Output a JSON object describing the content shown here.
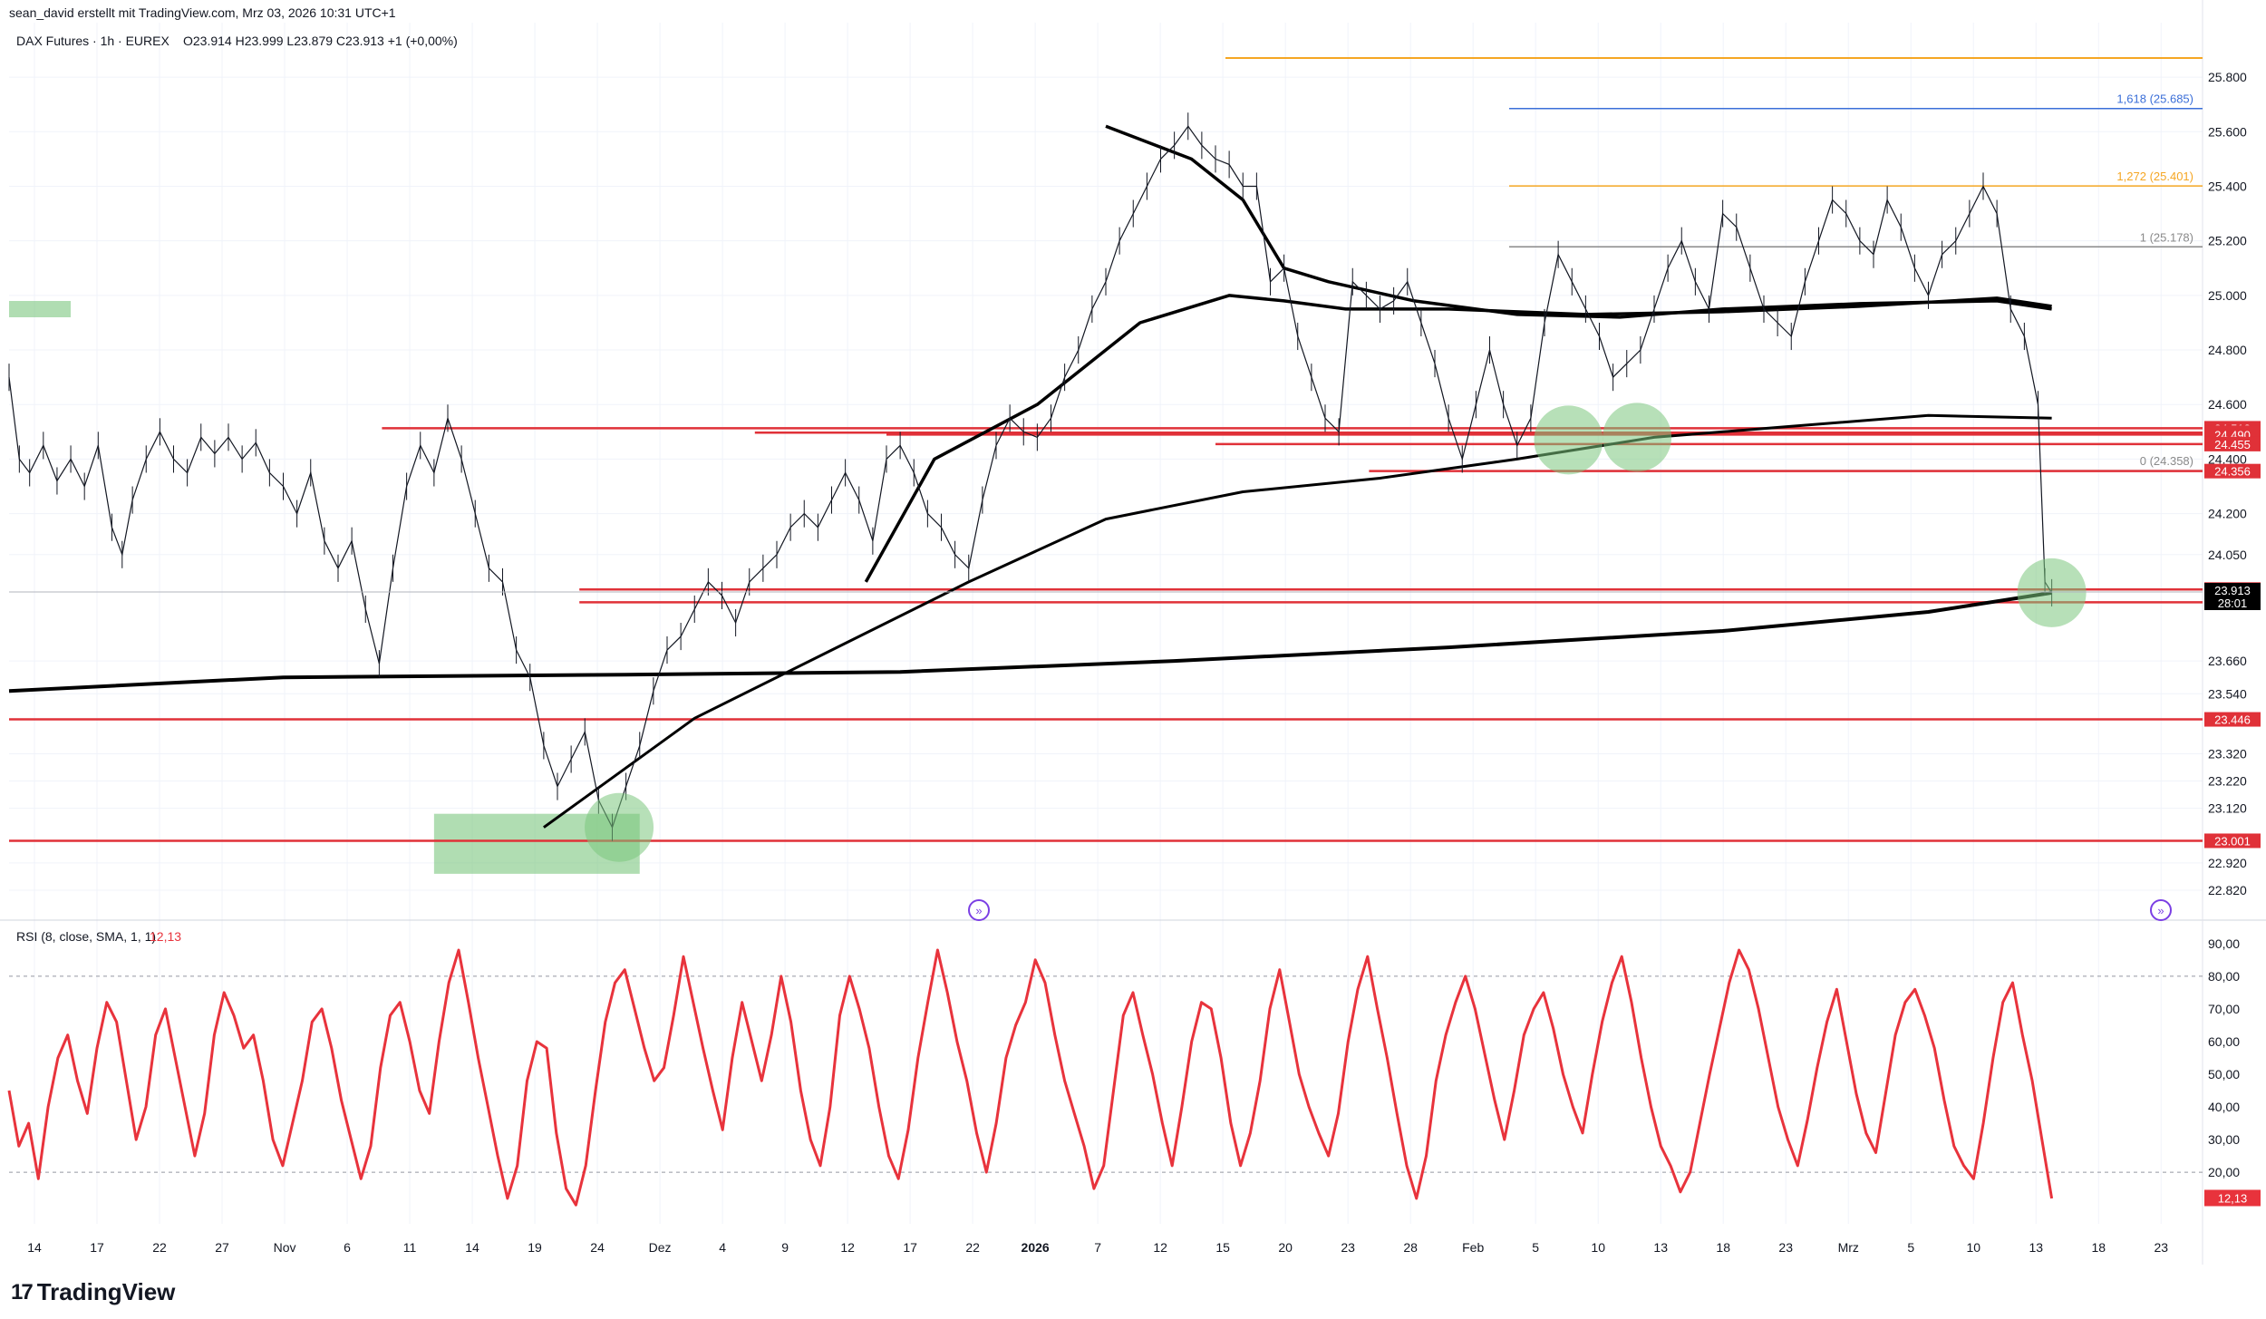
{
  "header": {
    "credit": "sean_david erstellt mit TradingView.com, Mrz 03, 2026 10:31 UTC+1",
    "symbol": "DAX Futures · 1h · EUREX",
    "ohlc": "O23.914  H23.999  L23.879  C23.913  +1 (+0,00%)"
  },
  "footer": {
    "logo_text": "TradingView"
  },
  "colors": {
    "price": "#131722",
    "support": "#e03138",
    "rsi": "#e8333c",
    "zone": "#7bc67e",
    "fib_orange": "#f5a623",
    "fib_blue": "#3b6fd8",
    "fib_gray": "#8a8a8a",
    "ma": "#000000"
  },
  "chart_data": [
    {
      "type": "line",
      "title": "DAX Futures · 1h · EUREX",
      "x_labels": [
        "14",
        "17",
        "22",
        "27",
        "Nov",
        "6",
        "11",
        "14",
        "19",
        "24",
        "Dez",
        "4",
        "9",
        "12",
        "17",
        "22",
        "2026",
        "7",
        "12",
        "15",
        "20",
        "23",
        "28",
        "Feb",
        "5",
        "10",
        "13",
        "18",
        "23",
        "Mrz",
        "5",
        "10",
        "13",
        "18",
        "23"
      ],
      "y_ticks": [
        "25.800",
        "25.600",
        "25.400",
        "25.200",
        "25.000",
        "24.800",
        "24.600",
        "24.400",
        "24.200",
        "24.050",
        "23.913",
        "23.660",
        "23.540",
        "23.320",
        "23.220",
        "23.120",
        "22.920",
        "22.820"
      ],
      "ylim": [
        22.76,
        25.9
      ],
      "price_path": [
        [
          0,
          24.7
        ],
        [
          3,
          24.4
        ],
        [
          6,
          24.35
        ],
        [
          10,
          24.45
        ],
        [
          14,
          24.32
        ],
        [
          18,
          24.4
        ],
        [
          22,
          24.3
        ],
        [
          26,
          24.45
        ],
        [
          30,
          24.15
        ],
        [
          33,
          24.05
        ],
        [
          36,
          24.25
        ],
        [
          40,
          24.4
        ],
        [
          44,
          24.5
        ],
        [
          48,
          24.4
        ],
        [
          52,
          24.35
        ],
        [
          56,
          24.48
        ],
        [
          60,
          24.42
        ],
        [
          64,
          24.48
        ],
        [
          68,
          24.4
        ],
        [
          72,
          24.46
        ],
        [
          76,
          24.35
        ],
        [
          80,
          24.3
        ],
        [
          84,
          24.2
        ],
        [
          88,
          24.35
        ],
        [
          92,
          24.1
        ],
        [
          96,
          24.0
        ],
        [
          100,
          24.1
        ],
        [
          104,
          23.85
        ],
        [
          108,
          23.65
        ],
        [
          112,
          24.0
        ],
        [
          116,
          24.3
        ],
        [
          120,
          24.45
        ],
        [
          124,
          24.35
        ],
        [
          128,
          24.55
        ],
        [
          132,
          24.4
        ],
        [
          136,
          24.2
        ],
        [
          140,
          24.0
        ],
        [
          144,
          23.95
        ],
        [
          148,
          23.7
        ],
        [
          152,
          23.6
        ],
        [
          156,
          23.35
        ],
        [
          160,
          23.2
        ],
        [
          164,
          23.3
        ],
        [
          168,
          23.4
        ],
        [
          172,
          23.15
        ],
        [
          176,
          23.05
        ],
        [
          180,
          23.2
        ],
        [
          184,
          23.35
        ],
        [
          188,
          23.55
        ],
        [
          192,
          23.7
        ],
        [
          196,
          23.75
        ],
        [
          200,
          23.85
        ],
        [
          204,
          23.95
        ],
        [
          208,
          23.9
        ],
        [
          212,
          23.8
        ],
        [
          216,
          23.95
        ],
        [
          220,
          24.0
        ],
        [
          224,
          24.05
        ],
        [
          228,
          24.15
        ],
        [
          232,
          24.2
        ],
        [
          236,
          24.15
        ],
        [
          240,
          24.25
        ],
        [
          244,
          24.35
        ],
        [
          248,
          24.25
        ],
        [
          252,
          24.1
        ],
        [
          256,
          24.4
        ],
        [
          260,
          24.45
        ],
        [
          264,
          24.35
        ],
        [
          268,
          24.2
        ],
        [
          272,
          24.15
        ],
        [
          276,
          24.05
        ],
        [
          280,
          24.0
        ],
        [
          284,
          24.25
        ],
        [
          288,
          24.45
        ],
        [
          292,
          24.55
        ],
        [
          296,
          24.5
        ],
        [
          300,
          24.48
        ],
        [
          304,
          24.55
        ],
        [
          308,
          24.7
        ],
        [
          312,
          24.8
        ],
        [
          316,
          24.95
        ],
        [
          320,
          25.05
        ],
        [
          324,
          25.2
        ],
        [
          328,
          25.3
        ],
        [
          332,
          25.4
        ],
        [
          336,
          25.5
        ],
        [
          340,
          25.55
        ],
        [
          344,
          25.62
        ],
        [
          348,
          25.55
        ],
        [
          352,
          25.5
        ],
        [
          356,
          25.48
        ],
        [
          360,
          25.4
        ],
        [
          364,
          25.4
        ],
        [
          368,
          25.05
        ],
        [
          372,
          25.1
        ],
        [
          376,
          24.85
        ],
        [
          380,
          24.7
        ],
        [
          384,
          24.55
        ],
        [
          388,
          24.5
        ],
        [
          392,
          25.05
        ],
        [
          396,
          25.0
        ],
        [
          400,
          24.95
        ],
        [
          404,
          24.98
        ],
        [
          408,
          25.05
        ],
        [
          412,
          24.9
        ],
        [
          416,
          24.75
        ],
        [
          420,
          24.55
        ],
        [
          424,
          24.4
        ],
        [
          428,
          24.6
        ],
        [
          432,
          24.8
        ],
        [
          436,
          24.6
        ],
        [
          440,
          24.45
        ],
        [
          444,
          24.55
        ],
        [
          448,
          24.9
        ],
        [
          452,
          25.15
        ],
        [
          456,
          25.05
        ],
        [
          460,
          24.95
        ],
        [
          464,
          24.85
        ],
        [
          468,
          24.7
        ],
        [
          472,
          24.75
        ],
        [
          476,
          24.8
        ],
        [
          480,
          24.95
        ],
        [
          484,
          25.1
        ],
        [
          488,
          25.2
        ],
        [
          492,
          25.05
        ],
        [
          496,
          24.95
        ],
        [
          500,
          25.3
        ],
        [
          504,
          25.25
        ],
        [
          508,
          25.1
        ],
        [
          512,
          24.95
        ],
        [
          516,
          24.9
        ],
        [
          520,
          24.85
        ],
        [
          524,
          25.05
        ],
        [
          528,
          25.2
        ],
        [
          532,
          25.35
        ],
        [
          536,
          25.3
        ],
        [
          540,
          25.2
        ],
        [
          544,
          25.15
        ],
        [
          548,
          25.35
        ],
        [
          552,
          25.25
        ],
        [
          556,
          25.1
        ],
        [
          560,
          25.0
        ],
        [
          564,
          25.15
        ],
        [
          568,
          25.2
        ],
        [
          572,
          25.3
        ],
        [
          576,
          25.4
        ],
        [
          580,
          25.3
        ],
        [
          584,
          24.95
        ],
        [
          588,
          24.85
        ],
        [
          592,
          24.6
        ],
        [
          594,
          23.95
        ],
        [
          596,
          23.91
        ]
      ],
      "ma_long": [
        [
          0,
          23.55
        ],
        [
          80,
          23.6
        ],
        [
          180,
          23.61
        ],
        [
          260,
          23.62
        ],
        [
          340,
          23.66
        ],
        [
          420,
          23.71
        ],
        [
          500,
          23.77
        ],
        [
          560,
          23.84
        ],
        [
          596,
          23.91
        ]
      ],
      "ma_mid": [
        [
          156,
          23.05
        ],
        [
          200,
          23.45
        ],
        [
          240,
          23.7
        ],
        [
          280,
          23.95
        ],
        [
          320,
          24.18
        ],
        [
          360,
          24.28
        ],
        [
          400,
          24.33
        ],
        [
          440,
          24.4
        ],
        [
          480,
          24.48
        ],
        [
          520,
          24.52
        ],
        [
          560,
          24.56
        ],
        [
          596,
          24.55
        ]
      ],
      "ma_short": [
        [
          250,
          23.95
        ],
        [
          270,
          24.4
        ],
        [
          300,
          24.6
        ],
        [
          330,
          24.9
        ],
        [
          356,
          25.0
        ],
        [
          372,
          24.98
        ],
        [
          390,
          24.95
        ],
        [
          420,
          24.95
        ],
        [
          460,
          24.93
        ],
        [
          500,
          24.94
        ],
        [
          540,
          24.96
        ],
        [
          580,
          24.99
        ],
        [
          596,
          24.96
        ]
      ],
      "ma_upper": [
        [
          320,
          25.62
        ],
        [
          345,
          25.5
        ],
        [
          360,
          25.35
        ],
        [
          372,
          25.1
        ],
        [
          385,
          25.05
        ],
        [
          410,
          24.98
        ],
        [
          440,
          24.93
        ],
        [
          470,
          24.92
        ],
        [
          500,
          24.95
        ],
        [
          540,
          24.97
        ],
        [
          580,
          24.98
        ],
        [
          596,
          24.95
        ]
      ],
      "support_lines": [
        {
          "label": "24.513",
          "value": 24.513,
          "from": 0.17,
          "to": 1.0
        },
        {
          "label": "24.497",
          "value": 24.497,
          "from": 0.34,
          "to": 1.0
        },
        {
          "label": "24.490",
          "value": 24.49,
          "from": 0.4,
          "to": 1.0
        },
        {
          "label": "24.455",
          "value": 24.455,
          "from": 0.55,
          "to": 1.0
        },
        {
          "label": "24.356",
          "value": 24.356,
          "from": 0.62,
          "to": 1.0
        },
        {
          "label": "23.922",
          "value": 23.922,
          "from": 0.26,
          "to": 1.0
        },
        {
          "label": "23.875",
          "value": 23.875,
          "from": 0.26,
          "to": 1.0
        },
        {
          "label": "23.446",
          "value": 23.446,
          "from": 0.0,
          "to": 1.0
        },
        {
          "label": "23.001",
          "value": 23.001,
          "from": 0.0,
          "to": 1.0
        }
      ],
      "fib_levels": [
        {
          "label": "1,618 (25.685)",
          "value": 25.685,
          "color": "#3b6fd8"
        },
        {
          "label": "1,272 (25.401)",
          "value": 25.401,
          "color": "#f5a623"
        },
        {
          "label": "1 (25.178)",
          "value": 25.178,
          "color": "#8a8a8a"
        },
        {
          "label": "0 (24.358)",
          "value": 24.358,
          "color": "#8a8a8a"
        }
      ],
      "top_line": {
        "value": 25.87,
        "color": "#f5a623"
      },
      "current_price": {
        "label": "23.913",
        "countdown": "28:01",
        "value": 23.913
      },
      "highlight_circles": [
        [
          178,
          23.05
        ],
        [
          455,
          24.47
        ],
        [
          475,
          24.48
        ],
        [
          596,
          23.91
        ]
      ]
    },
    {
      "type": "line",
      "title": "RSI (8, close, SMA, 1, 1)",
      "current_value": "12,13",
      "y_ticks": [
        "90,00",
        "80,00",
        "70,00",
        "60,00",
        "50,00",
        "40,00",
        "30,00",
        "20,00"
      ],
      "ylim": [
        7,
        93
      ],
      "bands": [
        80,
        20
      ],
      "values": [
        45,
        28,
        35,
        18,
        40,
        55,
        62,
        48,
        38,
        58,
        72,
        66,
        48,
        30,
        40,
        62,
        70,
        55,
        40,
        25,
        38,
        62,
        75,
        68,
        58,
        62,
        48,
        30,
        22,
        35,
        48,
        66,
        70,
        58,
        42,
        30,
        18,
        28,
        52,
        68,
        72,
        60,
        45,
        38,
        60,
        78,
        88,
        72,
        55,
        40,
        25,
        12,
        22,
        48,
        60,
        58,
        32,
        15,
        10,
        22,
        45,
        66,
        78,
        82,
        70,
        58,
        48,
        52,
        68,
        86,
        72,
        58,
        45,
        33,
        55,
        72,
        60,
        48,
        62,
        80,
        66,
        45,
        30,
        22,
        40,
        68,
        80,
        70,
        58,
        40,
        25,
        18,
        33,
        55,
        72,
        88,
        75,
        60,
        48,
        32,
        20,
        35,
        55,
        65,
        72,
        85,
        78,
        62,
        48,
        38,
        28,
        15,
        22,
        45,
        68,
        75,
        62,
        50,
        35,
        22,
        40,
        60,
        72,
        70,
        55,
        35,
        22,
        32,
        48,
        70,
        82,
        66,
        50,
        40,
        32,
        25,
        38,
        60,
        76,
        86,
        70,
        55,
        38,
        22,
        12,
        25,
        48,
        62,
        72,
        80,
        70,
        56,
        42,
        30,
        45,
        62,
        70,
        75,
        64,
        50,
        40,
        32,
        50,
        66,
        78,
        86,
        72,
        55,
        40,
        28,
        22,
        14,
        20,
        35,
        50,
        64,
        78,
        88,
        82,
        70,
        55,
        40,
        30,
        22,
        36,
        52,
        66,
        76,
        60,
        44,
        32,
        26,
        44,
        62,
        72,
        76,
        68,
        58,
        42,
        28,
        22,
        18,
        35,
        55,
        72,
        78,
        62,
        48,
        30,
        12
      ]
    }
  ]
}
